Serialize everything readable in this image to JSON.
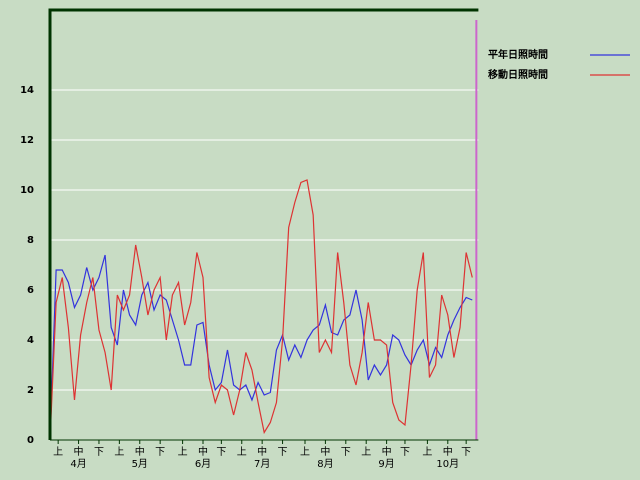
{
  "chart_data": {
    "type": "line",
    "x": [
      0,
      3,
      6,
      9,
      12,
      15,
      18,
      21,
      24,
      27,
      30,
      33,
      36,
      39,
      42,
      45,
      48,
      51,
      54,
      57,
      60,
      63,
      66,
      69,
      72,
      75,
      78,
      81,
      84,
      87,
      90,
      93,
      96,
      99,
      102,
      105,
      108,
      111,
      114,
      117,
      120,
      123,
      126,
      129,
      132,
      135,
      138,
      141,
      144,
      147,
      150,
      153,
      156,
      159,
      162,
      165,
      168,
      171,
      174,
      177,
      180,
      183,
      186,
      189,
      192,
      195,
      198,
      201,
      204,
      207
    ],
    "series": [
      {
        "name": "平年日照時間",
        "color": "#3333dd",
        "values": [
          0,
          6.8,
          6.8,
          6.3,
          5.3,
          5.8,
          6.9,
          6.0,
          6.5,
          7.4,
          4.5,
          3.8,
          6.0,
          5.0,
          4.6,
          5.8,
          6.3,
          5.2,
          5.8,
          5.6,
          4.8,
          4.0,
          3.0,
          3.0,
          4.6,
          4.7,
          3.0,
          2.0,
          2.3,
          3.6,
          2.2,
          2.0,
          2.2,
          1.6,
          2.3,
          1.8,
          1.9,
          3.6,
          4.2,
          3.2,
          3.8,
          3.3,
          4.0,
          4.4,
          4.6,
          5.4,
          4.3,
          4.2,
          4.8,
          5.0,
          6.0,
          4.8,
          2.4,
          3.0,
          2.6,
          3.0,
          4.2,
          4.0,
          3.4,
          3.0,
          3.6,
          4.0,
          3.0,
          3.7,
          3.3,
          4.2,
          4.8,
          5.3,
          5.7,
          5.6
        ]
      },
      {
        "name": "移動日照時間",
        "color": "#dd3333",
        "values": [
          0,
          5.5,
          6.5,
          4.5,
          1.6,
          4.2,
          5.5,
          6.5,
          4.4,
          3.5,
          2.0,
          5.8,
          5.2,
          5.8,
          7.8,
          6.5,
          5.0,
          6.0,
          6.5,
          4.0,
          5.8,
          6.3,
          4.6,
          5.5,
          7.5,
          6.5,
          2.5,
          1.5,
          2.2,
          2.0,
          1.0,
          2.0,
          3.5,
          2.8,
          1.5,
          0.3,
          0.7,
          1.5,
          4.0,
          8.5,
          9.5,
          10.3,
          10.4,
          9.0,
          3.5,
          4.0,
          3.5,
          7.5,
          5.5,
          3.0,
          2.2,
          3.5,
          5.5,
          4.0,
          4.0,
          3.8,
          1.5,
          0.8,
          0.6,
          3.0,
          6.0,
          7.5,
          2.5,
          3.0,
          5.8,
          5.0,
          3.3,
          4.5,
          7.5,
          6.5
        ]
      }
    ],
    "xlim": [
      0,
      210
    ],
    "xticks": [
      {
        "value": 4,
        "label": "上"
      },
      {
        "value": 14,
        "label": "中"
      },
      {
        "value": 24,
        "label": "下"
      },
      {
        "value": 34,
        "label": "上"
      },
      {
        "value": 44,
        "label": "中"
      },
      {
        "value": 54,
        "label": "下"
      },
      {
        "value": 65,
        "label": "上"
      },
      {
        "value": 75,
        "label": "中"
      },
      {
        "value": 84,
        "label": "下"
      },
      {
        "value": 94,
        "label": "上"
      },
      {
        "value": 104,
        "label": "中"
      },
      {
        "value": 114,
        "label": "下"
      },
      {
        "value": 125,
        "label": "上"
      },
      {
        "value": 135,
        "label": "中"
      },
      {
        "value": 145,
        "label": "下"
      },
      {
        "value": 155,
        "label": "上"
      },
      {
        "value": 165,
        "label": "中"
      },
      {
        "value": 174,
        "label": "下"
      },
      {
        "value": 185,
        "label": "上"
      },
      {
        "value": 195,
        "label": "中"
      },
      {
        "value": 204,
        "label": "下"
      }
    ],
    "month_labels": [
      {
        "value": 14,
        "label": "4月"
      },
      {
        "value": 44,
        "label": "5月"
      },
      {
        "value": 75,
        "label": "6月"
      },
      {
        "value": 104,
        "label": "7月"
      },
      {
        "value": 135,
        "label": "8月"
      },
      {
        "value": 165,
        "label": "9月"
      },
      {
        "value": 195,
        "label": "10月"
      }
    ],
    "ylim": [
      0,
      17.2
    ],
    "yticks": [
      0,
      2,
      4,
      6,
      8,
      10,
      12,
      14
    ],
    "grid": true,
    "marker_x": 209,
    "marker_color": "#cc66cc"
  }
}
